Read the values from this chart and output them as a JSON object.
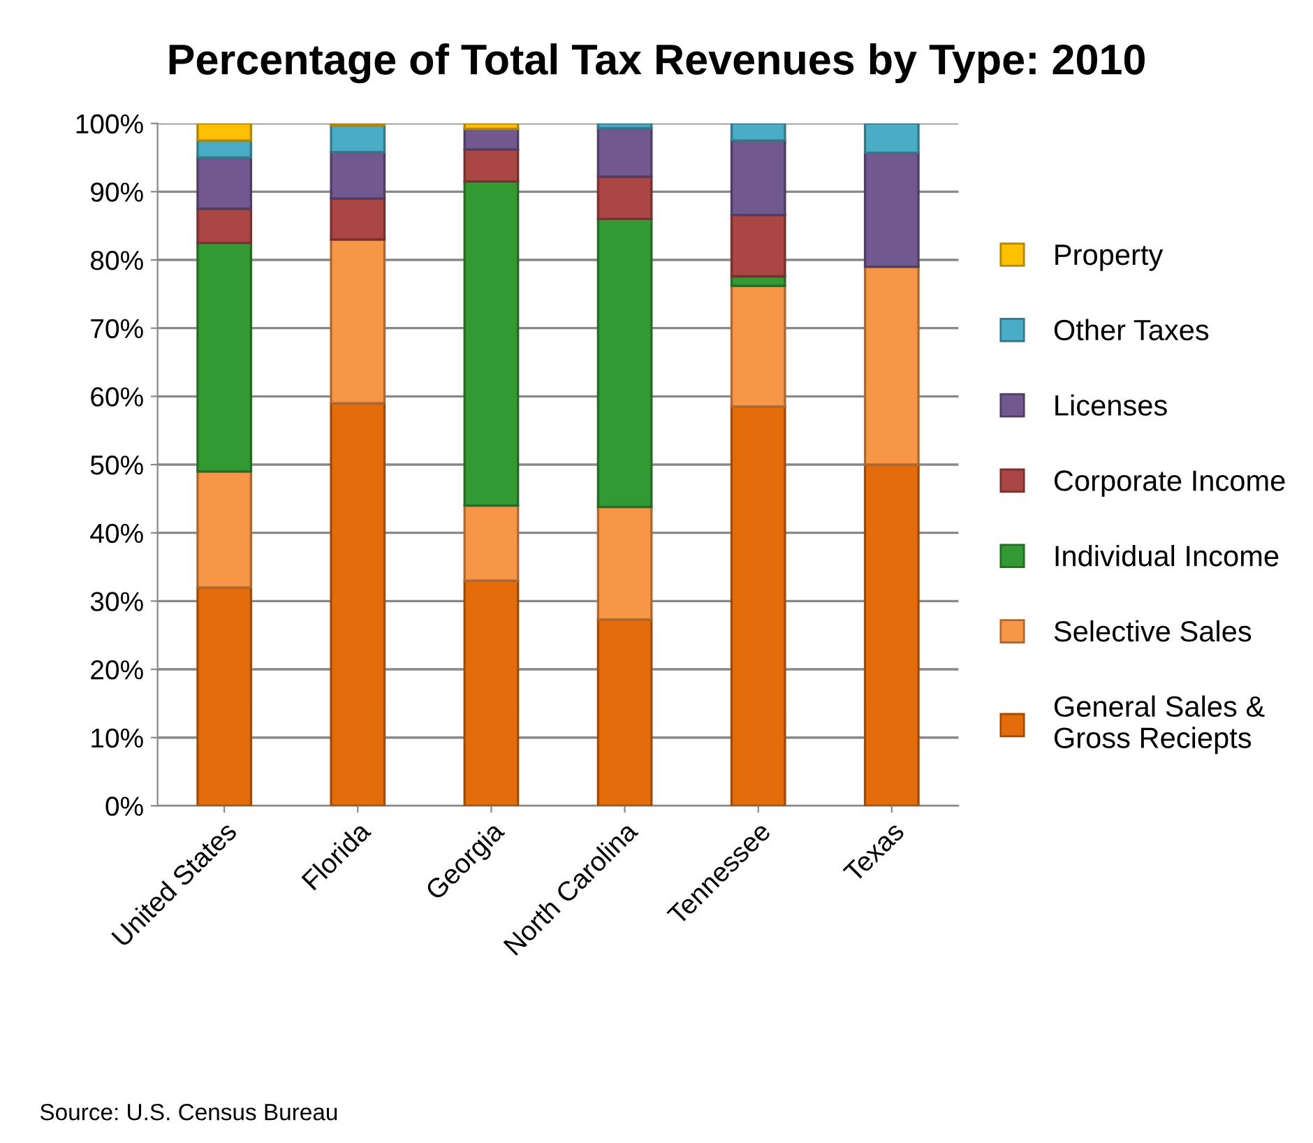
{
  "chart_data": {
    "type": "bar",
    "stacked": true,
    "title": "Percentage of Total Tax Revenues by Type: 2010",
    "categories": [
      "United States",
      "Florida",
      "Georgia",
      "North Carolina",
      "Tennessee",
      "Texas"
    ],
    "series": [
      {
        "name": "General Sales &\nGross Reciepts",
        "color": "#e46c0a",
        "values": [
          32,
          59,
          33,
          27.3,
          58.5,
          50
        ]
      },
      {
        "name": "Selective Sales",
        "color": "#f79646",
        "values": [
          17,
          24,
          11,
          16.5,
          17.7,
          29
        ]
      },
      {
        "name": "Individual Income",
        "color": "#339933",
        "values": [
          33.5,
          0,
          47.5,
          42.2,
          1.4,
          0
        ]
      },
      {
        "name": "Corporate Income",
        "color": "#aa4643",
        "values": [
          5,
          6,
          4.7,
          6.2,
          9,
          0
        ]
      },
      {
        "name": "Licenses",
        "color": "#71588f",
        "values": [
          7.5,
          6.8,
          3,
          7.1,
          10.9,
          16.7
        ]
      },
      {
        "name": "Other Taxes",
        "color": "#4bacc6",
        "values": [
          2.5,
          3.9,
          0,
          0.7,
          2.5,
          4.3
        ]
      },
      {
        "name": "Property",
        "color": "#ffc000",
        "values": [
          2.5,
          0.3,
          0.8,
          0,
          0,
          0
        ]
      }
    ],
    "ylim": [
      0,
      100
    ],
    "yticks": [
      {
        "value": 0,
        "label": "0%"
      },
      {
        "value": 10,
        "label": "10%"
      },
      {
        "value": 20,
        "label": "20%"
      },
      {
        "value": 30,
        "label": "30%"
      },
      {
        "value": 40,
        "label": "40%"
      },
      {
        "value": 50,
        "label": "50%"
      },
      {
        "value": 60,
        "label": "60%"
      },
      {
        "value": 70,
        "label": "70%"
      },
      {
        "value": 80,
        "label": "80%"
      },
      {
        "value": 90,
        "label": "90%"
      },
      {
        "value": 100,
        "label": "100%"
      }
    ],
    "grid": "y",
    "legend": "right",
    "annotations": [
      "Source: U.S. Census Bureau"
    ]
  }
}
